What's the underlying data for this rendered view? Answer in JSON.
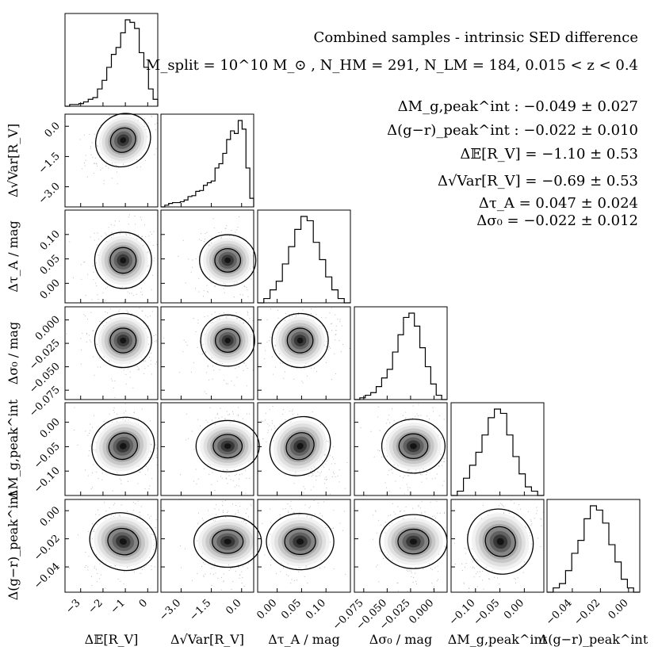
{
  "chart_data": {
    "type": "corner",
    "title": "Combined samples - intrinsic SED difference",
    "subtitle": "M_split = 10^10 M_⊙ ,  N_HM = 291,  N_LM = 184,  0.015 < z < 0.4",
    "summary": [
      "ΔM_g,peak^int : −0.049 ± 0.027",
      "Δ(g−r)_peak^int : −0.022 ± 0.010",
      "Δ𝔼[R_V] = −1.10 ± 0.53",
      "Δ√Var[R_V] = −0.69 ± 0.53",
      "Δτ_A = 0.047 ± 0.024",
      "Δσ₀ = −0.022 ± 0.012"
    ],
    "parameters": [
      {
        "label": "Δ𝔼[R_V]",
        "xlabel": "Δ𝔼[R_V]",
        "ylabel": "",
        "range": [
          -3.7,
          0.45
        ],
        "ticks": [
          -3,
          -2,
          -1,
          0
        ],
        "tick_labels": [
          "−3",
          "−2",
          "−1",
          "0"
        ],
        "median": -1.1,
        "sigma": 0.53,
        "skew": -0.6,
        "hist": [
          0.0,
          0.02,
          0.02,
          0.03,
          0.05,
          0.08,
          0.1,
          0.2,
          0.3,
          0.45,
          0.6,
          0.68,
          0.85,
          1.0,
          0.97,
          0.9,
          0.62,
          0.45,
          0.2,
          0.08
        ]
      },
      {
        "label": "Δ√Var[R_V]",
        "xlabel": "Δ√Var[R_V]",
        "ylabel": "Δ√Var[R_V]",
        "range": [
          -4.0,
          0.6
        ],
        "ticks": [
          -3.0,
          -1.5,
          0.0
        ],
        "tick_labels": [
          "−3.0",
          "−1.5",
          "0.0"
        ],
        "median": -0.69,
        "sigma": 0.53,
        "skew": -0.8,
        "hist": [
          0.0,
          0.02,
          0.04,
          0.05,
          0.05,
          0.06,
          0.08,
          0.12,
          0.13,
          0.18,
          0.19,
          0.25,
          0.28,
          0.3,
          0.45,
          0.5,
          0.62,
          0.78,
          0.88,
          0.85,
          1.0,
          0.9,
          0.45,
          0.1
        ]
      },
      {
        "label": "Δτ_A / mag",
        "xlabel": "Δτ_A / mag",
        "ylabel": "Δτ_A / mag",
        "range": [
          -0.04,
          0.15
        ],
        "ticks": [
          0.0,
          0.05,
          0.1
        ],
        "tick_labels": [
          "0.00",
          "0.05",
          "0.10"
        ],
        "median": 0.047,
        "sigma": 0.024,
        "skew": 0.0,
        "hist": [
          0.0,
          0.05,
          0.15,
          0.25,
          0.45,
          0.65,
          0.85,
          1.0,
          0.95,
          0.7,
          0.5,
          0.3,
          0.15,
          0.05,
          0.0
        ]
      },
      {
        "label": "Δσ₀ / mag",
        "xlabel": "Δσ₀ / mag",
        "ylabel": "Δσ₀ / mag",
        "range": [
          -0.085,
          0.014
        ],
        "ticks": [
          -0.075,
          -0.05,
          -0.025,
          0.0
        ],
        "tick_labels": [
          "−0.075",
          "−0.050",
          "−0.025",
          "0.000"
        ],
        "median": -0.022,
        "sigma": 0.012,
        "skew": 0.0,
        "hist": [
          0.0,
          0.02,
          0.05,
          0.08,
          0.15,
          0.25,
          0.35,
          0.55,
          0.75,
          0.95,
          1.0,
          0.85,
          0.6,
          0.38,
          0.18,
          0.05,
          0.0
        ]
      },
      {
        "label": "ΔM_g,peak^int",
        "xlabel": "ΔM_g,peak^int",
        "ylabel": "ΔM_g,peak^int",
        "range": [
          -0.15,
          0.04
        ],
        "ticks": [
          -0.1,
          -0.05,
          0.0
        ],
        "tick_labels": [
          "−0.10",
          "−0.05",
          "0.00"
        ],
        "median": -0.049,
        "sigma": 0.027,
        "skew": 0.0,
        "hist": [
          0.0,
          0.05,
          0.2,
          0.35,
          0.5,
          0.7,
          0.9,
          1.0,
          0.95,
          0.7,
          0.45,
          0.25,
          0.1,
          0.05,
          0.0
        ]
      },
      {
        "label": "Δ(g−r)_peak^int",
        "xlabel": "Δ(g−r)_peak^int",
        "ylabel": "Δ(g−r)_peak^int",
        "range": [
          -0.058,
          0.008
        ],
        "ticks": [
          -0.04,
          -0.02,
          0.0
        ],
        "tick_labels": [
          "−0.04",
          "−0.02",
          "0.00"
        ],
        "median": -0.022,
        "sigma": 0.01,
        "skew": 0.0,
        "hist": [
          0.0,
          0.05,
          0.1,
          0.25,
          0.45,
          0.6,
          0.85,
          1.0,
          0.95,
          0.8,
          0.55,
          0.35,
          0.15,
          0.05,
          0.0
        ]
      }
    ],
    "correlations": [
      [
        1,
        0,
        0,
        0,
        0,
        0
      ],
      [
        0.4,
        1,
        0,
        0,
        0,
        0
      ],
      [
        0,
        0,
        1,
        0,
        0,
        0
      ],
      [
        0,
        0,
        0,
        1,
        0,
        0
      ],
      [
        -0.1,
        0,
        -0.55,
        0,
        1,
        0
      ],
      [
        0.1,
        0,
        0,
        0,
        0.5,
        1
      ]
    ],
    "grid": false,
    "contours": 2
  }
}
